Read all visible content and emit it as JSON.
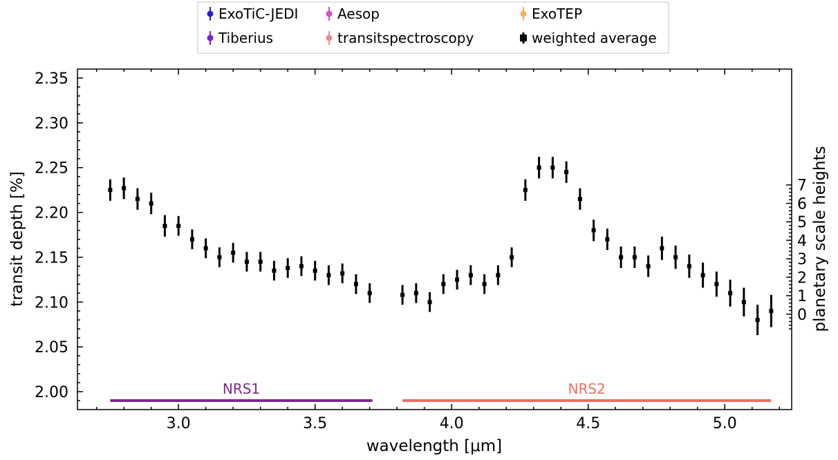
{
  "chart_data": {
    "type": "scatter",
    "xlabel": "wavelength [μm]",
    "ylabel": "transit depth [%]",
    "ylabel_right": "planetary scale heights",
    "xlim": [
      2.63,
      5.245
    ],
    "ylim": [
      1.98,
      2.36
    ],
    "x_ticks": [
      3.0,
      3.5,
      4.0,
      4.5,
      5.0
    ],
    "x_tick_labels": [
      "3.0",
      "3.5",
      "4.0",
      "4.5",
      "5.0"
    ],
    "y_ticks": [
      2.0,
      2.05,
      2.1,
      2.15,
      2.2,
      2.25,
      2.3,
      2.35
    ],
    "y_tick_labels": [
      "2.00",
      "2.05",
      "2.10",
      "2.15",
      "2.20",
      "2.25",
      "2.30",
      "2.35"
    ],
    "right_axis": {
      "scale_height_zero_transit_depth": 2.0865,
      "transit_depth_per_scale_height": 0.0206,
      "ticks": [
        0,
        1,
        2,
        3,
        4,
        5,
        6,
        7
      ],
      "tick_labels": [
        "0",
        "1",
        "2",
        "3",
        "4",
        "5",
        "6",
        "7"
      ]
    },
    "grid": false,
    "legend_position": "top-center",
    "legend": [
      {
        "name": "ExoTiC-JEDI",
        "color": "#2a1ae6"
      },
      {
        "name": "Aesop",
        "color": "#d84ccb"
      },
      {
        "name": "ExoTEP",
        "color": "#f5b25f"
      },
      {
        "name": "Tiberius",
        "color": "#7b1be0"
      },
      {
        "name": "transitspectroscopy",
        "color": "#f08a8a"
      },
      {
        "name": "weighted average",
        "color": "#000000"
      }
    ],
    "detector_ranges": [
      {
        "label": "NRS1",
        "x_start": 2.75,
        "x_end": 3.71,
        "y": 1.99,
        "color": "#7f2a8a"
      },
      {
        "label": "NRS2",
        "x_start": 3.82,
        "x_end": 5.17,
        "y": 1.99,
        "color": "#ef6f61"
      }
    ],
    "series": [
      {
        "name": "weighted average",
        "color": "#000000",
        "x": [
          2.75,
          2.8,
          2.85,
          2.9,
          2.95,
          3.0,
          3.05,
          3.1,
          3.15,
          3.2,
          3.25,
          3.3,
          3.35,
          3.4,
          3.45,
          3.5,
          3.55,
          3.6,
          3.65,
          3.7,
          3.82,
          3.87,
          3.92,
          3.97,
          4.02,
          4.07,
          4.12,
          4.17,
          4.22,
          4.27,
          4.32,
          4.37,
          4.42,
          4.47,
          4.52,
          4.57,
          4.62,
          4.67,
          4.72,
          4.77,
          4.82,
          4.87,
          4.92,
          4.97,
          5.02,
          5.07,
          5.12,
          5.17
        ],
        "y": [
          2.225,
          2.227,
          2.215,
          2.21,
          2.185,
          2.185,
          2.17,
          2.16,
          2.15,
          2.155,
          2.145,
          2.145,
          2.135,
          2.138,
          2.14,
          2.135,
          2.13,
          2.132,
          2.12,
          2.11,
          2.108,
          2.11,
          2.1,
          2.12,
          2.125,
          2.13,
          2.12,
          2.13,
          2.15,
          2.225,
          2.25,
          2.25,
          2.245,
          2.215,
          2.18,
          2.17,
          2.15,
          2.15,
          2.14,
          2.16,
          2.15,
          2.14,
          2.13,
          2.12,
          2.11,
          2.1,
          2.08,
          2.09
        ],
        "yerr": [
          0.012,
          0.012,
          0.012,
          0.012,
          0.012,
          0.011,
          0.011,
          0.011,
          0.011,
          0.011,
          0.011,
          0.011,
          0.011,
          0.011,
          0.011,
          0.011,
          0.011,
          0.011,
          0.011,
          0.011,
          0.011,
          0.011,
          0.011,
          0.011,
          0.011,
          0.011,
          0.011,
          0.011,
          0.011,
          0.012,
          0.012,
          0.012,
          0.012,
          0.012,
          0.012,
          0.012,
          0.012,
          0.012,
          0.012,
          0.013,
          0.013,
          0.013,
          0.014,
          0.014,
          0.015,
          0.016,
          0.017,
          0.018
        ]
      }
    ]
  }
}
